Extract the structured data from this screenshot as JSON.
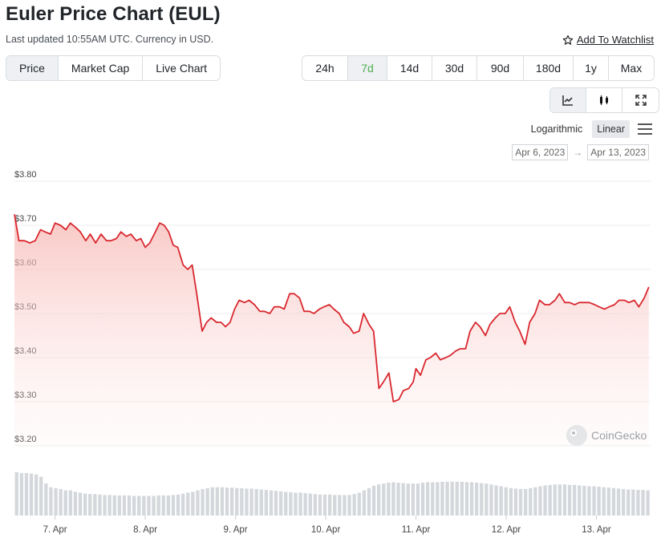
{
  "header": {
    "title": "Euler Price Chart (EUL)",
    "subtitle": "Last updated 10:55AM UTC. Currency in USD.",
    "watchlist_label": "Add To Watchlist"
  },
  "tabs": [
    {
      "label": "Price",
      "active": true
    },
    {
      "label": "Market Cap",
      "active": false
    },
    {
      "label": "Live Chart",
      "active": false
    }
  ],
  "ranges": [
    {
      "label": "24h",
      "active": false
    },
    {
      "label": "7d",
      "active": true
    },
    {
      "label": "14d",
      "active": false
    },
    {
      "label": "30d",
      "active": false
    },
    {
      "label": "90d",
      "active": false
    },
    {
      "label": "180d",
      "active": false
    },
    {
      "label": "1y",
      "active": false
    },
    {
      "label": "Max",
      "active": false
    }
  ],
  "chart_types": [
    {
      "icon": "line-chart-icon",
      "active": true
    },
    {
      "icon": "candlestick-icon",
      "active": false
    },
    {
      "icon": "fullscreen-icon",
      "active": false
    }
  ],
  "scale": {
    "logarithmic": "Logarithmic",
    "linear": "Linear",
    "active": "linear"
  },
  "date_range": {
    "from": "Apr 6, 2023",
    "arrow": "→",
    "to": "Apr 13, 2023"
  },
  "watermark": "CoinGecko",
  "colors": {
    "line": "#d9282f",
    "fill": "#f8c9c6",
    "volume": "#d4d7db",
    "active_range": "#4caf50"
  },
  "chart_data": {
    "type": "line",
    "title": "Euler Price Chart (EUL)",
    "y_tick_labels": [
      "$3.80",
      "$3.70",
      "$3.60",
      "$3.50",
      "$3.40",
      "$3.30",
      "$3.20"
    ],
    "y_ticks": [
      3.8,
      3.7,
      3.6,
      3.5,
      3.4,
      3.3,
      3.2
    ],
    "ylim": [
      3.2,
      3.8
    ],
    "x_tick_labels": [
      "7. Apr",
      "8. Apr",
      "9. Apr",
      "10. Apr",
      "11. Apr",
      "12. Apr",
      "13. Apr"
    ],
    "x_tick_days": [
      1,
      2,
      3,
      4,
      5,
      6,
      7
    ],
    "xlim_days": [
      0.55,
      7.6
    ],
    "grid": true,
    "series": [
      {
        "x_days": [
          0.55,
          0.6,
          0.66,
          0.72,
          0.78,
          0.84,
          0.89,
          0.95,
          1.0,
          1.06,
          1.12,
          1.17,
          1.23,
          1.28,
          1.34,
          1.39,
          1.45,
          1.51,
          1.57,
          1.62,
          1.68,
          1.73,
          1.79,
          1.84,
          1.9,
          1.95,
          2.0,
          2.05,
          2.1,
          2.16,
          2.21,
          2.26,
          2.31,
          2.36,
          2.42,
          2.47,
          2.52,
          2.57,
          2.63,
          2.68,
          2.73,
          2.79,
          2.84,
          2.89,
          2.94,
          2.99,
          3.04,
          3.1,
          3.15,
          3.21,
          3.27,
          3.32,
          3.38,
          3.43,
          3.49,
          3.54,
          3.6,
          3.65,
          3.71,
          3.76,
          3.82,
          3.87,
          3.93,
          3.98,
          4.04,
          4.09,
          4.15,
          4.2,
          4.26,
          4.31,
          4.37,
          4.42,
          4.48,
          4.53,
          4.59,
          4.64,
          4.7,
          4.75,
          4.81,
          4.86,
          4.92,
          4.97,
          5.0,
          5.05,
          5.11,
          5.16,
          5.22,
          5.27,
          5.33,
          5.38,
          5.44,
          5.49,
          5.55,
          5.6,
          5.66,
          5.71,
          5.77,
          5.82,
          5.88,
          5.93,
          5.99,
          6.04,
          6.1,
          6.15,
          6.21,
          6.26,
          6.32,
          6.37,
          6.43,
          6.48,
          6.54,
          6.59,
          6.65,
          6.7,
          6.76,
          6.81,
          6.87,
          6.92,
          6.98,
          7.03,
          7.09,
          7.14,
          7.2,
          7.25,
          7.31,
          7.36,
          7.42,
          7.47,
          7.53,
          7.58
        ],
        "values": [
          3.725,
          3.665,
          3.665,
          3.66,
          3.665,
          3.69,
          3.685,
          3.68,
          3.705,
          3.7,
          3.69,
          3.705,
          3.695,
          3.685,
          3.665,
          3.68,
          3.66,
          3.68,
          3.665,
          3.665,
          3.67,
          3.685,
          3.675,
          3.68,
          3.665,
          3.67,
          3.65,
          3.66,
          3.68,
          3.705,
          3.7,
          3.685,
          3.655,
          3.65,
          3.61,
          3.6,
          3.61,
          3.545,
          3.46,
          3.48,
          3.49,
          3.48,
          3.48,
          3.47,
          3.48,
          3.51,
          3.53,
          3.525,
          3.53,
          3.52,
          3.505,
          3.505,
          3.5,
          3.515,
          3.515,
          3.51,
          3.545,
          3.545,
          3.535,
          3.505,
          3.505,
          3.5,
          3.51,
          3.515,
          3.52,
          3.51,
          3.5,
          3.48,
          3.47,
          3.455,
          3.46,
          3.5,
          3.475,
          3.46,
          3.33,
          3.345,
          3.365,
          3.3,
          3.305,
          3.325,
          3.33,
          3.345,
          3.375,
          3.36,
          3.395,
          3.4,
          3.41,
          3.395,
          3.4,
          3.405,
          3.415,
          3.42,
          3.42,
          3.46,
          3.48,
          3.47,
          3.45,
          3.475,
          3.49,
          3.5,
          3.5,
          3.515,
          3.48,
          3.46,
          3.43,
          3.48,
          3.5,
          3.53,
          3.52,
          3.52,
          3.53,
          3.545,
          3.525,
          3.525,
          3.52,
          3.525,
          3.525,
          3.525,
          3.52,
          3.515,
          3.51,
          3.515,
          3.52,
          3.53,
          3.53,
          3.525,
          3.53,
          3.515,
          3.535,
          3.56
        ]
      }
    ],
    "volume": [
      0.95,
      0.93,
      0.93,
      0.92,
      0.9,
      0.85,
      0.7,
      0.62,
      0.6,
      0.58,
      0.55,
      0.55,
      0.52,
      0.5,
      0.48,
      0.47,
      0.47,
      0.46,
      0.45,
      0.45,
      0.44,
      0.44,
      0.44,
      0.44,
      0.43,
      0.43,
      0.43,
      0.43,
      0.43,
      0.44,
      0.44,
      0.44,
      0.45,
      0.46,
      0.48,
      0.5,
      0.52,
      0.55,
      0.58,
      0.6,
      0.62,
      0.62,
      0.62,
      0.61,
      0.61,
      0.6,
      0.6,
      0.59,
      0.59,
      0.58,
      0.57,
      0.56,
      0.55,
      0.54,
      0.53,
      0.52,
      0.51,
      0.5,
      0.5,
      0.49,
      0.48,
      0.47,
      0.46,
      0.46,
      0.46,
      0.45,
      0.45,
      0.45,
      0.45,
      0.47,
      0.5,
      0.55,
      0.6,
      0.65,
      0.68,
      0.7,
      0.72,
      0.73,
      0.72,
      0.71,
      0.7,
      0.7,
      0.7,
      0.72,
      0.73,
      0.73,
      0.73,
      0.74,
      0.74,
      0.74,
      0.74,
      0.74,
      0.73,
      0.73,
      0.72,
      0.71,
      0.7,
      0.68,
      0.66,
      0.64,
      0.62,
      0.6,
      0.59,
      0.58,
      0.58,
      0.6,
      0.62,
      0.64,
      0.66,
      0.67,
      0.68,
      0.68,
      0.68,
      0.67,
      0.67,
      0.66,
      0.65,
      0.64,
      0.64,
      0.63,
      0.62,
      0.61,
      0.6,
      0.59,
      0.58,
      0.57,
      0.57,
      0.56,
      0.56,
      0.55
    ]
  }
}
